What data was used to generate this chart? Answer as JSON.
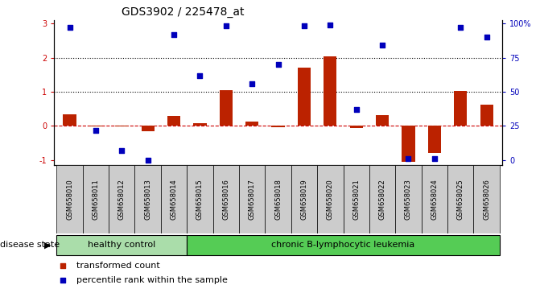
{
  "title": "GDS3902 / 225478_at",
  "samples": [
    "GSM658010",
    "GSM658011",
    "GSM658012",
    "GSM658013",
    "GSM658014",
    "GSM658015",
    "GSM658016",
    "GSM658017",
    "GSM658018",
    "GSM658019",
    "GSM658020",
    "GSM658021",
    "GSM658022",
    "GSM658023",
    "GSM658024",
    "GSM658025",
    "GSM658026"
  ],
  "transformed_count": [
    0.35,
    -0.02,
    -0.01,
    -0.15,
    0.3,
    0.07,
    1.05,
    0.12,
    -0.03,
    1.7,
    2.03,
    -0.05,
    0.32,
    -1.05,
    -0.8,
    1.02,
    0.62
  ],
  "percentile_rank_pct": [
    97,
    22,
    7,
    0,
    92,
    62,
    98,
    56,
    70,
    98,
    99,
    37,
    84,
    1,
    1,
    97,
    90
  ],
  "bar_color": "#BB2200",
  "dot_color": "#0000BB",
  "zero_line_color": "#CC0000",
  "dotted_line_color": "#000000",
  "bg_color": "#FFFFFF",
  "left_ytick_color": "#CC0000",
  "right_ytick_color": "#0000BB",
  "ylim_left": [
    -1.15,
    3.1
  ],
  "left_yticks": [
    -1,
    0,
    1,
    2,
    3
  ],
  "right_yticks": [
    0,
    25,
    50,
    75,
    100
  ],
  "right_ytick_labels": [
    "0",
    "25",
    "50",
    "75",
    "100%"
  ],
  "healthy_label": "healthy control",
  "leukemia_label": "chronic B-lymphocytic leukemia",
  "healthy_n": 5,
  "healthy_color": "#AADDAA",
  "leukemia_color": "#55CC55",
  "label_bg_color": "#CCCCCC",
  "disease_state_text": "disease state",
  "legend_items": [
    {
      "color": "#BB2200",
      "label": "transformed count"
    },
    {
      "color": "#0000BB",
      "label": "percentile rank within the sample"
    }
  ],
  "title_fontsize": 10,
  "tick_fontsize": 7,
  "sample_fontsize": 6,
  "legend_fontsize": 8,
  "group_fontsize": 8,
  "disease_state_fontsize": 8,
  "bar_width": 0.5
}
